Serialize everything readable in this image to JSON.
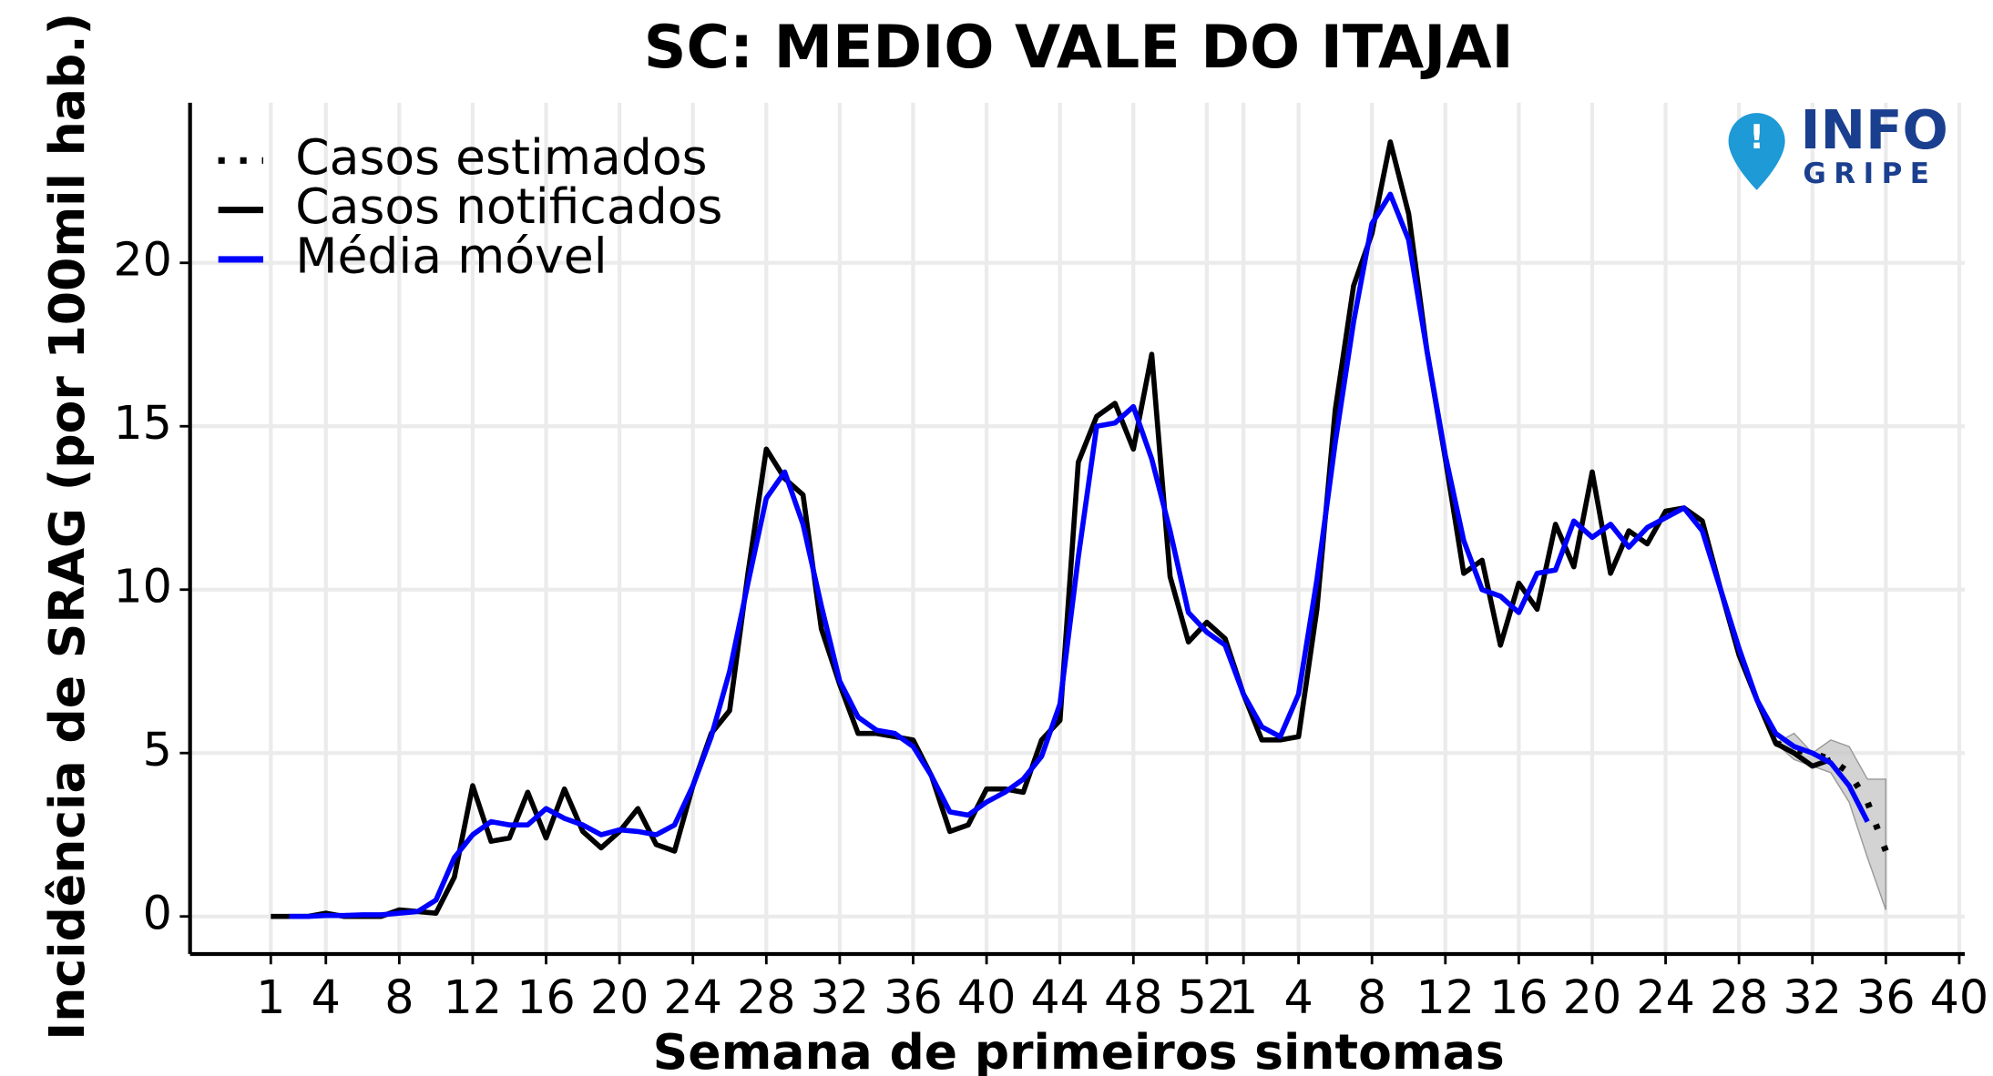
{
  "chart_data": {
    "type": "line",
    "title": "SC: MEDIO VALE DO ITAJAI",
    "xlabel": "Semana de primeiros sintomas",
    "ylabel": "Incidência de SRAG (por 100mil hab.)",
    "logo": [
      "INFO",
      "GRIPE"
    ],
    "xlim": [
      -3.4,
      93.3
    ],
    "ylim": [
      -1.15,
      24.9
    ],
    "xticks": [
      1,
      4,
      8,
      12,
      16,
      20,
      24,
      28,
      32,
      36,
      40,
      44,
      48,
      52,
      {
        "value": 54,
        "label": "1"
      },
      {
        "value": 57,
        "label": "4"
      },
      {
        "value": 61,
        "label": "8"
      },
      {
        "value": 65,
        "label": "12"
      },
      {
        "value": 69,
        "label": "16"
      },
      {
        "value": 73,
        "label": "20"
      },
      {
        "value": 77,
        "label": "24"
      },
      {
        "value": 81,
        "label": "28"
      },
      {
        "value": 85,
        "label": "32"
      },
      {
        "value": 89,
        "label": "36"
      },
      {
        "value": 93,
        "label": "40"
      }
    ],
    "yticks": [
      0,
      5,
      10,
      15,
      20
    ],
    "grid": true,
    "legend": "top-left",
    "series": [
      {
        "name": "Casos estimados",
        "color": "#000000",
        "style": "dotted",
        "x": [
          83,
          84,
          85,
          86,
          87,
          88,
          89
        ],
        "values": [
          5.3,
          5.1,
          5.0,
          4.8,
          4.4,
          3.5,
          2.0
        ],
        "interval": {
          "color": "#c8c8c8",
          "lower": [
            5.3,
            4.8,
            4.6,
            4.4,
            3.5,
            1.8,
            0.2
          ],
          "upper": [
            5.3,
            5.6,
            5.0,
            5.4,
            5.2,
            4.2,
            4.2
          ]
        }
      },
      {
        "name": "Casos notificados",
        "color": "#000000",
        "style": "solid",
        "x": [
          1,
          2,
          3,
          4,
          5,
          6,
          7,
          8,
          9,
          10,
          11,
          12,
          13,
          14,
          15,
          16,
          17,
          18,
          19,
          20,
          21,
          22,
          23,
          24,
          25,
          26,
          27,
          28,
          29,
          30,
          31,
          32,
          33,
          34,
          35,
          36,
          37,
          38,
          39,
          40,
          41,
          42,
          43,
          44,
          45,
          46,
          47,
          48,
          49,
          50,
          51,
          52,
          53,
          54,
          55,
          56,
          57,
          58,
          59,
          60,
          61,
          62,
          63,
          64,
          65,
          66,
          67,
          68,
          69,
          70,
          71,
          72,
          73,
          74,
          75,
          76,
          77,
          78,
          79,
          80,
          81,
          82,
          83,
          84,
          85,
          86
        ],
        "values": [
          0,
          0,
          0,
          0.1,
          0,
          0,
          0,
          0.2,
          0.15,
          0.1,
          1.2,
          4.0,
          2.3,
          2.4,
          3.8,
          2.4,
          3.9,
          2.6,
          2.1,
          2.6,
          3.3,
          2.2,
          2.0,
          4.0,
          5.6,
          6.3,
          10.5,
          14.3,
          13.4,
          12.9,
          8.8,
          7.1,
          5.6,
          5.6,
          5.5,
          5.4,
          4.3,
          2.6,
          2.8,
          3.9,
          3.9,
          3.8,
          5.4,
          6.0,
          13.9,
          15.3,
          15.7,
          14.3,
          17.2,
          10.4,
          8.4,
          9.0,
          8.5,
          6.8,
          5.4,
          5.4,
          5.5,
          9.4,
          15.5,
          19.3,
          20.9,
          23.7,
          21.5,
          17.3,
          14.0,
          10.5,
          10.9,
          8.3,
          10.2,
          9.4,
          12.0,
          10.7,
          13.6,
          10.5,
          11.8,
          11.4,
          12.4,
          12.5,
          12.1,
          10.0,
          8.0,
          6.6,
          5.3,
          5.0,
          4.6,
          4.8
        ]
      },
      {
        "name": "Média móvel",
        "color": "#0000ff",
        "style": "solid",
        "x": [
          2,
          3,
          4,
          5,
          6,
          7,
          8,
          9,
          10,
          11,
          12,
          13,
          14,
          15,
          16,
          17,
          18,
          19,
          20,
          21,
          22,
          23,
          24,
          25,
          26,
          27,
          28,
          29,
          30,
          31,
          32,
          33,
          34,
          35,
          36,
          37,
          38,
          39,
          40,
          41,
          42,
          43,
          44,
          45,
          46,
          47,
          48,
          49,
          50,
          51,
          52,
          53,
          54,
          55,
          56,
          57,
          58,
          59,
          60,
          61,
          62,
          63,
          64,
          65,
          66,
          67,
          68,
          69,
          70,
          71,
          72,
          73,
          74,
          75,
          76,
          77,
          78,
          79,
          80,
          81,
          82,
          83,
          84,
          85,
          86,
          87,
          88
        ],
        "values": [
          0,
          0,
          0.03,
          0.03,
          0.05,
          0.05,
          0.1,
          0.15,
          0.5,
          1.8,
          2.5,
          2.9,
          2.8,
          2.8,
          3.3,
          3.0,
          2.8,
          2.5,
          2.65,
          2.6,
          2.5,
          2.8,
          4.0,
          5.5,
          7.5,
          10.2,
          12.8,
          13.6,
          12.0,
          9.5,
          7.2,
          6.1,
          5.7,
          5.6,
          5.2,
          4.3,
          3.2,
          3.1,
          3.5,
          3.8,
          4.2,
          4.9,
          6.5,
          11.0,
          15.0,
          15.1,
          15.6,
          14.0,
          11.8,
          9.3,
          8.7,
          8.3,
          6.8,
          5.8,
          5.5,
          6.8,
          10.3,
          14.5,
          18.2,
          21.2,
          22.1,
          20.7,
          17.3,
          14.1,
          11.5,
          10.0,
          9.8,
          9.3,
          10.5,
          10.6,
          12.1,
          11.6,
          12.0,
          11.3,
          11.9,
          12.2,
          12.5,
          11.8,
          10.0,
          8.2,
          6.6,
          5.6,
          5.2,
          5.0,
          4.7,
          4.0,
          2.9
        ]
      }
    ]
  }
}
